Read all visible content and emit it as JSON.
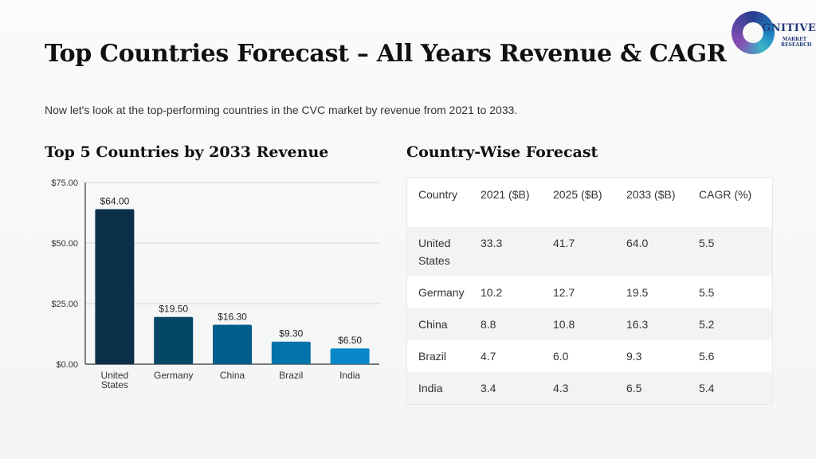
{
  "logo": {
    "name": "GNITIVE",
    "sub": "MARKET RESEARCH"
  },
  "title": "Top Countries Forecast – All Years Revenue & CAGR",
  "subtitle": "Now let's look at the top-performing countries in the CVC market by revenue from 2021 to 2033.",
  "chart_heading": "Top 5 Countries by 2033 Revenue",
  "table_heading": "Country-Wise Forecast",
  "colors": {
    "bar_colors": [
      "#0c3049",
      "#044766",
      "#035d8c",
      "#0372a8",
      "#0888c8"
    ]
  },
  "chart_data": {
    "type": "bar",
    "categories": [
      "United States",
      "Germany",
      "China",
      "Brazil",
      "India"
    ],
    "values": [
      64.0,
      19.5,
      16.3,
      9.3,
      6.5
    ],
    "data_labels": [
      "$64.00",
      "$19.50",
      "$16.30",
      "$9.30",
      "$6.50"
    ],
    "yticks": [
      0,
      25,
      50,
      75
    ],
    "ytick_labels": [
      "$0.00",
      "$25.00",
      "$50.00",
      "$75.00"
    ],
    "ylim": [
      0,
      75
    ],
    "grid": true,
    "title": "Top 5 Countries by 2033 Revenue"
  },
  "table": {
    "headers": [
      "Country",
      "2021 ($B)",
      "2025 ($B)",
      "2033 ($B)",
      "CAGR (%)"
    ],
    "rows": [
      [
        "United States",
        "33.3",
        "41.7",
        "64.0",
        "5.5"
      ],
      [
        "Germany",
        "10.2",
        "12.7",
        "19.5",
        "5.5"
      ],
      [
        "China",
        "8.8",
        "10.8",
        "16.3",
        "5.2"
      ],
      [
        "Brazil",
        "4.7",
        "6.0",
        "9.3",
        "5.6"
      ],
      [
        "India",
        "3.4",
        "4.3",
        "6.5",
        "5.4"
      ]
    ]
  }
}
